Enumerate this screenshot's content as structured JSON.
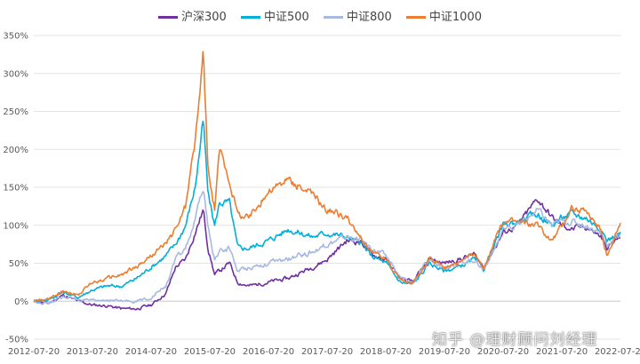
{
  "chart_data": {
    "type": "line",
    "title": "",
    "xlabel": "",
    "ylabel": "",
    "legend_position": "top",
    "grid": true,
    "ylim": [
      -50,
      350
    ],
    "yticks": [
      "-50%",
      "0%",
      "50%",
      "100%",
      "150%",
      "200%",
      "250%",
      "300%",
      "350%"
    ],
    "x_range": [
      "2012-07-20",
      "2022-07-20"
    ],
    "xticks": [
      "2012-07-20",
      "2013-07-20",
      "2014-07-20",
      "2015-07-20",
      "2016-07-20",
      "2017-07-20",
      "2018-07-20",
      "2019-07-20",
      "2020-07-20",
      "2021-07-20",
      "2022-07-20"
    ],
    "x": [
      "2012-07-20",
      "2012-10-20",
      "2013-01-20",
      "2013-04-20",
      "2013-07-20",
      "2013-10-20",
      "2014-01-20",
      "2014-04-20",
      "2014-07-20",
      "2014-10-20",
      "2014-12-20",
      "2015-02-20",
      "2015-04-20",
      "2015-06-10",
      "2015-07-10",
      "2015-08-20",
      "2015-09-20",
      "2015-11-20",
      "2016-01-10",
      "2016-03-20",
      "2016-07-20",
      "2016-11-20",
      "2017-04-20",
      "2017-07-20",
      "2017-11-20",
      "2018-02-20",
      "2018-04-20",
      "2018-07-20",
      "2018-10-20",
      "2019-01-04",
      "2019-04-20",
      "2019-07-20",
      "2019-10-20",
      "2020-01-20",
      "2020-03-20",
      "2020-07-20",
      "2020-10-20",
      "2021-02-20",
      "2021-05-20",
      "2021-07-20",
      "2021-09-20",
      "2021-12-20",
      "2022-03-20",
      "2022-04-27",
      "2022-07-20"
    ],
    "series": [
      {
        "name": "沪深300",
        "color": "#7030a0",
        "values": [
          0,
          -3,
          8,
          0,
          -5,
          -6,
          -10,
          -10,
          -5,
          10,
          45,
          55,
          90,
          120,
          70,
          35,
          40,
          50,
          25,
          20,
          25,
          30,
          45,
          55,
          80,
          78,
          62,
          55,
          30,
          25,
          55,
          50,
          55,
          62,
          45,
          90,
          100,
          135,
          110,
          100,
          95,
          98,
          85,
          70,
          85
        ]
      },
      {
        "name": "中证500",
        "color": "#00b0d8",
        "values": [
          0,
          2,
          12,
          5,
          15,
          20,
          20,
          30,
          45,
          60,
          75,
          100,
          150,
          238,
          140,
          100,
          130,
          130,
          70,
          70,
          80,
          95,
          85,
          90,
          85,
          75,
          60,
          50,
          25,
          22,
          50,
          40,
          45,
          55,
          42,
          100,
          105,
          115,
          100,
          110,
          115,
          110,
          95,
          80,
          90
        ]
      },
      {
        "name": "中证800",
        "color": "#a6b9e0",
        "values": [
          0,
          -3,
          6,
          2,
          0,
          2,
          0,
          0,
          5,
          20,
          55,
          70,
          105,
          150,
          95,
          55,
          65,
          70,
          40,
          45,
          50,
          55,
          65,
          75,
          85,
          80,
          70,
          60,
          30,
          25,
          55,
          45,
          50,
          55,
          42,
          92,
          100,
          120,
          100,
          105,
          105,
          100,
          90,
          75,
          88
        ]
      },
      {
        "name": "中证1000",
        "color": "#ed7d31",
        "values": [
          0,
          2,
          15,
          8,
          25,
          30,
          35,
          45,
          60,
          75,
          95,
          125,
          210,
          325,
          170,
          120,
          200,
          160,
          115,
          110,
          145,
          160,
          140,
          120,
          110,
          80,
          65,
          55,
          28,
          24,
          55,
          45,
          50,
          60,
          45,
          105,
          105,
          100,
          80,
          100,
          125,
          115,
          95,
          60,
          100
        ]
      }
    ]
  },
  "watermark": "知乎 @理财顾问刘经理"
}
